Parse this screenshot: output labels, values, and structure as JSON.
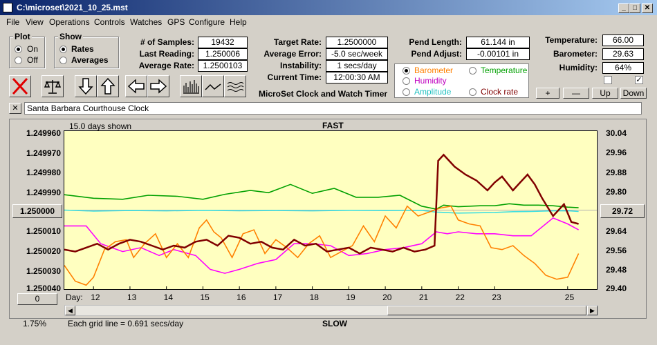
{
  "window": {
    "title": "C:\\microset\\2021_10_25.mst"
  },
  "menu": [
    "File",
    "View",
    "Operations",
    "Controls",
    "Watches",
    "GPS",
    "Configure",
    "Help"
  ],
  "plot_group": {
    "label": "Plot",
    "options": [
      "On",
      "Off"
    ],
    "selected": "On"
  },
  "show_group": {
    "label": "Show",
    "options": [
      "Rates",
      "Averages"
    ],
    "selected": "Rates"
  },
  "stats": {
    "samples_label": "# of Samples:",
    "samples": "19432",
    "last_label": "Last Reading:",
    "last": "1.250006",
    "avg_label": "Average Rate:",
    "avg": "1.2500103"
  },
  "rates": {
    "target_label": "Target Rate:",
    "target": "1.2500000",
    "error_label": "Average Error:",
    "error": "-5.0 sec/week",
    "instab_label": "Instability:",
    "instab": "1 secs/day",
    "time_label": "Current Time:",
    "time": "12:00:30 AM"
  },
  "pend": {
    "length_label": "Pend Length:",
    "length": "61.144 in",
    "adjust_label": "Pend Adjust:",
    "adjust": "-0.00101 in"
  },
  "env": {
    "temp_label": "Temperature:",
    "temp": "66.00",
    "baro_label": "Barometer:",
    "baro": "29.63",
    "hum_label": "Humidity:",
    "hum": "64%"
  },
  "series_select": {
    "barometer": "Barometer",
    "temperature": "Temperature",
    "humidity": "Humidity",
    "amplitude": "Amplitude",
    "clock_rate": "Clock rate",
    "selected": "Barometer"
  },
  "scale_buttons": {
    "plus": "+",
    "minus": "—",
    "up": "Up",
    "down": "Down"
  },
  "app_caption": "MicroSet Clock and Watch Timer",
  "clock_name": "Santa Barbara Courthouse Clock",
  "close_x": "✕",
  "colors": {
    "clock_rate": "#800000",
    "barometer": "#ff8000",
    "temperature": "#00a000",
    "humidity": "#ff00ff",
    "amplitude": "#40e0e0",
    "plot_bg": "#ffffc0"
  },
  "chart_data": {
    "type": "line",
    "title_top": "FAST",
    "title_bottom": "SLOW",
    "days_shown": "15.0 days shown",
    "grid_note": "Each grid line = 0.691 secs/day",
    "scale_pct": "1.75%",
    "x_label": "Day:",
    "x_ticks": [
      "12",
      "13",
      "14",
      "15",
      "16",
      "17",
      "18",
      "19",
      "20",
      "21",
      "22",
      "23",
      "25"
    ],
    "x_range": [
      11.2,
      25.8
    ],
    "left_axis": {
      "ticks": [
        "1.249960",
        "1.249970",
        "1.249980",
        "1.249990",
        "1.250000",
        "1.250010",
        "1.250020",
        "1.250030",
        "1.250040"
      ],
      "range": [
        1.25004,
        1.24996
      ],
      "center_button": "1.250000"
    },
    "right_axis": {
      "ticks": [
        "30.04",
        "29.96",
        "29.88",
        "29.80",
        "29.72",
        "29.64",
        "29.56",
        "29.48",
        "29.40"
      ],
      "range": [
        29.4,
        30.04
      ],
      "center_button": "29.72"
    },
    "offset_button": "0",
    "series": [
      {
        "name": "Temperature",
        "color": "#00a000",
        "x": [
          11.2,
          12.0,
          12.8,
          13.5,
          14.3,
          15.0,
          15.6,
          16.3,
          16.8,
          17.4,
          18.0,
          18.6,
          19.2,
          19.8,
          20.4,
          21.0,
          21.4,
          21.6,
          22.0,
          22.6,
          23.0,
          23.4,
          23.8,
          24.2,
          24.6,
          25.0,
          25.3
        ],
        "y": [
          1.2499922,
          1.249994,
          1.2499945,
          1.2499925,
          1.249993,
          1.2499945,
          1.249992,
          1.24999,
          1.2499912,
          1.249987,
          1.2499915,
          1.249989,
          1.2499935,
          1.2499935,
          1.2499925,
          1.249998,
          1.2499995,
          1.2499975,
          1.2499983,
          1.2499978,
          1.2499978,
          1.2499968,
          1.2499975,
          1.2499975,
          1.2499978,
          1.2499985,
          1.2499988
        ]
      },
      {
        "name": "Amplitude",
        "color": "#40e0e0",
        "x": [
          11.2,
          12.0,
          13.0,
          14.0,
          15.0,
          16.0,
          17.0,
          18.0,
          19.0,
          20.0,
          21.0,
          21.4,
          22.0,
          23.0,
          23.5,
          24.0,
          24.6,
          25.0,
          25.3
        ],
        "y": [
          1.25,
          1.2500005,
          1.2500002,
          1.2500004,
          1.2500001,
          1.2500003,
          1.2500002,
          1.2500004,
          1.2500001,
          1.2500002,
          1.2500001,
          1.250001,
          1.2500015,
          1.2500012,
          1.2500008,
          1.2500007,
          1.2500004,
          1.2500003,
          1.2500007
        ]
      },
      {
        "name": "Humidity",
        "color": "#ff00ff",
        "x": [
          11.2,
          11.8,
          12.2,
          12.8,
          13.3,
          13.8,
          14.2,
          14.8,
          15.2,
          15.6,
          16.0,
          16.5,
          17.0,
          17.5,
          18.0,
          18.5,
          19.0,
          19.5,
          20.0,
          20.5,
          21.0,
          21.4,
          21.7,
          22.0,
          22.5,
          23.0,
          23.5,
          24.0,
          24.6,
          25.0,
          25.3
        ],
        "y": [
          1.250008,
          1.250008,
          1.250017,
          1.250021,
          1.250019,
          1.250023,
          1.25002,
          1.250023,
          1.25003,
          1.250032,
          1.25003,
          1.250027,
          1.250025,
          1.250017,
          1.250017,
          1.250018,
          1.250023,
          1.250022,
          1.25002,
          1.250019,
          1.250017,
          1.250011,
          1.250012,
          1.250011,
          1.250012,
          1.250012,
          1.250013,
          1.250013,
          1.250004,
          1.250007,
          1.25001
        ]
      },
      {
        "name": "Barometer",
        "color": "#ff8000",
        "x": [
          11.2,
          11.5,
          11.8,
          12.0,
          12.3,
          12.6,
          12.9,
          13.1,
          13.4,
          13.7,
          14.0,
          14.3,
          14.6,
          14.9,
          15.1,
          15.3,
          15.5,
          15.8,
          16.1,
          16.4,
          16.7,
          17.0,
          17.3,
          17.6,
          17.9,
          18.2,
          18.5,
          18.8,
          19.1,
          19.4,
          19.7,
          20.0,
          20.3,
          20.6,
          20.9,
          21.2,
          21.5,
          21.8,
          22.0,
          22.3,
          22.6,
          22.9,
          23.2,
          23.5,
          23.8,
          24.1,
          24.4,
          24.7,
          25.0,
          25.3
        ],
        "y": [
          1.250028,
          1.250036,
          1.250038,
          1.250034,
          1.25002,
          1.250016,
          1.250015,
          1.250024,
          1.250017,
          1.250012,
          1.250024,
          1.250017,
          1.250024,
          1.250009,
          1.250005,
          1.250011,
          1.250014,
          1.250024,
          1.250012,
          1.25001,
          1.250022,
          1.250015,
          1.250019,
          1.250024,
          1.250017,
          1.250013,
          1.250024,
          1.250021,
          1.250018,
          1.250008,
          1.250016,
          1.250003,
          1.250009,
          1.249998,
          1.250003,
          1.250001,
          1.249999,
          1.249998,
          1.250005,
          1.250007,
          1.250008,
          1.250019,
          1.25002,
          1.250018,
          1.250023,
          1.250027,
          1.250033,
          1.250035,
          1.250034,
          1.250022
        ]
      },
      {
        "name": "Clock rate",
        "color": "#800000",
        "x": [
          11.2,
          11.5,
          11.8,
          12.1,
          12.4,
          12.7,
          13.0,
          13.3,
          13.6,
          13.9,
          14.2,
          14.5,
          14.8,
          15.1,
          15.4,
          15.7,
          16.0,
          16.3,
          16.6,
          16.9,
          17.2,
          17.5,
          17.8,
          18.1,
          18.4,
          18.7,
          19.0,
          19.3,
          19.6,
          19.9,
          20.2,
          20.5,
          20.8,
          21.1,
          21.35,
          21.45,
          21.6,
          21.9,
          22.2,
          22.5,
          22.8,
          23.0,
          23.2,
          23.5,
          23.7,
          23.9,
          24.1,
          24.3,
          24.6,
          24.9,
          25.1,
          25.3
        ],
        "y": [
          1.25002,
          1.250021,
          1.250019,
          1.250017,
          1.25002,
          1.250017,
          1.250015,
          1.250016,
          1.250018,
          1.25002,
          1.250018,
          1.250019,
          1.250016,
          1.250015,
          1.250018,
          1.250013,
          1.250014,
          1.250017,
          1.250016,
          1.250019,
          1.25002,
          1.250015,
          1.250018,
          1.250017,
          1.250021,
          1.25002,
          1.250019,
          1.250022,
          1.250019,
          1.25002,
          1.250021,
          1.250019,
          1.250021,
          1.25002,
          1.250018,
          1.249975,
          1.249972,
          1.249978,
          1.249982,
          1.249985,
          1.24999,
          1.249986,
          1.249983,
          1.24999,
          1.249986,
          1.249982,
          1.249987,
          1.249994,
          1.250003,
          1.249997,
          1.250006,
          1.250007
        ]
      }
    ]
  }
}
